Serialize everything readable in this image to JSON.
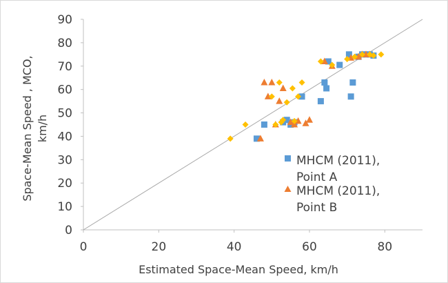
{
  "chart_data": {
    "type": "scatter",
    "title": "",
    "xlabel": "Estimated Space-Mean Speed, km/h",
    "ylabel": [
      "Space-Mean Speed , MCO,",
      "km/h"
    ],
    "xlim": [
      0,
      90
    ],
    "ylim": [
      0,
      90
    ],
    "xticks": [
      0,
      20,
      40,
      60,
      80
    ],
    "yticks": [
      0,
      10,
      20,
      30,
      40,
      50,
      60,
      70,
      80,
      90
    ],
    "grid": false,
    "legend_position": "lower-right",
    "reference_line": {
      "from": [
        0,
        0
      ],
      "to": [
        90,
        90
      ],
      "color": "#a6a6a6"
    },
    "series": [
      {
        "name": [
          "MHCM (2011),",
          "Point A"
        ],
        "marker": "square",
        "color": "#5b9bd5",
        "points": [
          [
            46,
            39
          ],
          [
            48,
            45
          ],
          [
            53,
            46
          ],
          [
            54,
            47
          ],
          [
            55,
            45
          ],
          [
            56,
            46
          ],
          [
            58,
            57
          ],
          [
            63,
            55
          ],
          [
            64,
            63
          ],
          [
            64.5,
            60.5
          ],
          [
            65,
            72
          ],
          [
            68,
            70.5
          ],
          [
            70.5,
            75
          ],
          [
            71,
            57
          ],
          [
            71.5,
            63
          ],
          [
            73,
            74
          ],
          [
            74,
            75
          ],
          [
            75,
            75
          ],
          [
            76,
            75
          ],
          [
            77,
            74.5
          ]
        ]
      },
      {
        "name": [
          "MHCM (2011),",
          "Point B"
        ],
        "marker": "triangle",
        "color": "#ed7d31",
        "points": [
          [
            47,
            39
          ],
          [
            48,
            63
          ],
          [
            49,
            57
          ],
          [
            50,
            63
          ],
          [
            51,
            45
          ],
          [
            52,
            55
          ],
          [
            53,
            60.5
          ],
          [
            55,
            46
          ],
          [
            56,
            45
          ],
          [
            57,
            46.5
          ],
          [
            59,
            45.5
          ],
          [
            60,
            47
          ],
          [
            64,
            72
          ],
          [
            66,
            70
          ],
          [
            71,
            73.5
          ],
          [
            73,
            74
          ],
          [
            74,
            75
          ],
          [
            75,
            75
          ],
          [
            76,
            75
          ]
        ]
      },
      {
        "name": "",
        "marker": "diamond",
        "color": "#ffc000",
        "points": [
          [
            39,
            39
          ],
          [
            43,
            45
          ],
          [
            50,
            57
          ],
          [
            51,
            45
          ],
          [
            52,
            63
          ],
          [
            52.5,
            46
          ],
          [
            53,
            47
          ],
          [
            54,
            54.5
          ],
          [
            55.5,
            60.5
          ],
          [
            56,
            46.5
          ],
          [
            57,
            57
          ],
          [
            58,
            63
          ],
          [
            63,
            72
          ],
          [
            66,
            70.5
          ],
          [
            70,
            73
          ],
          [
            72,
            74
          ],
          [
            74,
            75
          ],
          [
            76,
            75
          ],
          [
            77,
            74.5
          ],
          [
            79,
            75
          ]
        ]
      }
    ]
  }
}
